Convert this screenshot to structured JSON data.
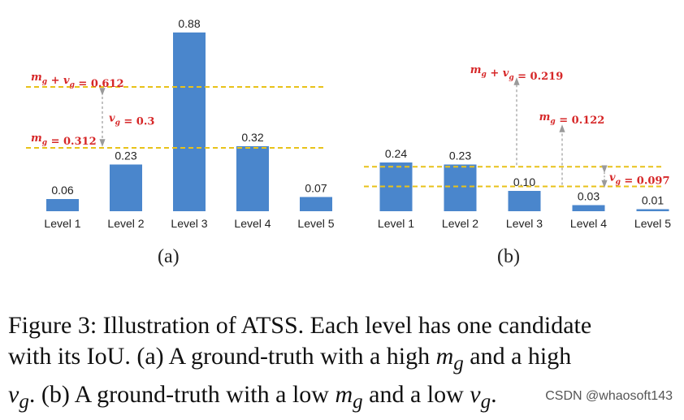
{
  "chart_data": [
    {
      "type": "bar",
      "panel": "(a)",
      "categories": [
        "Level 1",
        "Level 2",
        "Level 3",
        "Level 4",
        "Level 5"
      ],
      "values": [
        0.06,
        0.23,
        0.88,
        0.32,
        0.07
      ],
      "value_labels": [
        "0.06",
        "0.23",
        "0.88",
        "0.32",
        "0.07"
      ],
      "ylim": [
        0,
        0.9
      ],
      "grid": false,
      "bar_color": "#4a86cc",
      "reference_lines": [
        {
          "value": 0.612,
          "label": "m_g + v_g = 0.612"
        },
        {
          "value": 0.312,
          "label": "m_g = 0.312"
        }
      ],
      "annotations": [
        {
          "label": "v_g = 0.3",
          "between": [
            0.312,
            0.612
          ]
        }
      ]
    },
    {
      "type": "bar",
      "panel": "(b)",
      "categories": [
        "Level 1",
        "Level 2",
        "Level 3",
        "Level 4",
        "Level 5"
      ],
      "values": [
        0.24,
        0.23,
        0.1,
        0.03,
        0.01
      ],
      "value_labels": [
        "0.24",
        "0.23",
        "0.10",
        "0.03",
        "0.01"
      ],
      "ylim": [
        0,
        0.88
      ],
      "grid": false,
      "bar_color": "#4a86cc",
      "reference_lines": [
        {
          "value": 0.219,
          "label": "m_g + v_g = 0.219"
        },
        {
          "value": 0.122,
          "label": "m_g = 0.122"
        }
      ],
      "annotations": [
        {
          "label": "v_g = 0.097",
          "between": [
            0.122,
            0.219
          ]
        }
      ]
    }
  ],
  "colors": {
    "annotation_red": "#d62728",
    "threshold_yellow": "#e8c21a",
    "arrow_gray": "#9a9a9a"
  },
  "panel_labels": [
    "(a)",
    "(b)"
  ],
  "caption": {
    "line1": "Figure 3: Illustration of ATSS. Each level has one candidate",
    "line2_a": "with its IoU. (a) A ground-truth with a high ",
    "line2_b": " and a high",
    "line3_a": ". (b) A ground-truth with a low ",
    "line3_b": " and a low ",
    "math_mg": "m",
    "math_vg": "v",
    "math_sub": "g"
  },
  "watermark": "CSDN @whaosoft143"
}
